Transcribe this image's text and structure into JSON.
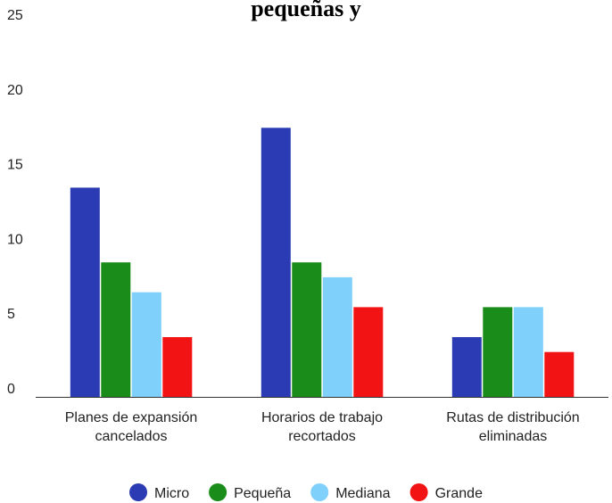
{
  "chart_data": {
    "type": "bar",
    "title": "pequeñas y",
    "categories": [
      [
        "Planes de expansión",
        "cancelados"
      ],
      [
        "Horarios de trabajo",
        "recortados"
      ],
      [
        "Rutas de distribución",
        "eliminadas"
      ]
    ],
    "series": [
      {
        "name": "Micro",
        "color": "#2a3bb4",
        "values": [
          14,
          18,
          4
        ]
      },
      {
        "name": "Pequeña",
        "color": "#1a8c1a",
        "values": [
          9,
          9,
          6
        ]
      },
      {
        "name": "Mediana",
        "color": "#7fd0fa",
        "values": [
          7,
          8,
          6
        ]
      },
      {
        "name": "Grande",
        "color": "#f21414",
        "values": [
          4,
          6,
          3
        ]
      }
    ],
    "ylim": [
      0,
      25
    ],
    "yticks": [
      0,
      5,
      10,
      15,
      20,
      25
    ],
    "xlabel": "",
    "ylabel": "",
    "grid": false,
    "legend_position": "bottom"
  }
}
